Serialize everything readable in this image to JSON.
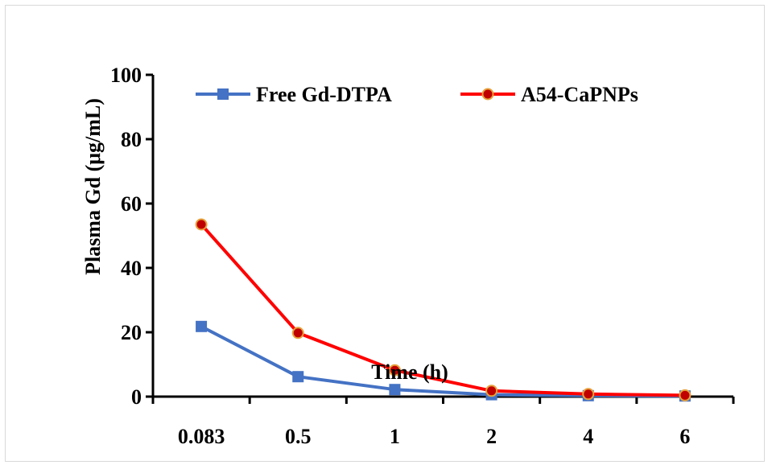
{
  "chart_data": {
    "type": "line",
    "categories": [
      "0.083",
      "0.5",
      "1",
      "2",
      "4",
      "6"
    ],
    "series": [
      {
        "name": "Free Gd-DTPA",
        "values": [
          21.8,
          6.2,
          2.2,
          0.6,
          0.3,
          0.2
        ],
        "color": "#4472c4",
        "marker": "square"
      },
      {
        "name": "A54-CaPNPs",
        "values": [
          53.5,
          19.8,
          8.2,
          1.8,
          0.8,
          0.4
        ],
        "color": "#ff0000",
        "marker": "circle",
        "marker_fill": "#c00000",
        "marker_edge": "#e8a13a"
      }
    ],
    "xlabel": "Time (h)",
    "ylabel": "Plasma Gd (μg/mL)",
    "ylim": [
      0,
      100
    ],
    "yticks": [
      "0",
      "20",
      "40",
      "60",
      "80",
      "100"
    ],
    "grid": false,
    "legend_position": "top"
  }
}
